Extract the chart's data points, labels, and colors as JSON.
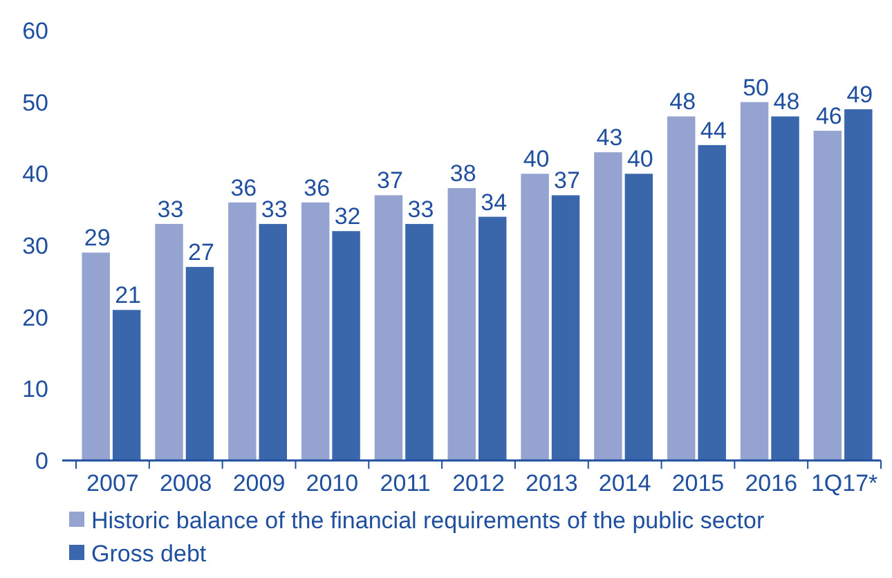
{
  "chart_data": {
    "type": "bar",
    "categories": [
      "2007",
      "2008",
      "2009",
      "2010",
      "2011",
      "2012",
      "2013",
      "2014",
      "2015",
      "2016",
      "1Q17*"
    ],
    "series": [
      {
        "name": "Historic balance of the financial requirements of the public sector",
        "color": "#95a3d0",
        "values": [
          29,
          33,
          36,
          36,
          37,
          38,
          40,
          43,
          48,
          50,
          46
        ]
      },
      {
        "name": "Gross debt",
        "color": "#3a66ab",
        "values": [
          21,
          27,
          33,
          32,
          33,
          34,
          37,
          40,
          44,
          48,
          49
        ]
      }
    ],
    "ylim": [
      0,
      60
    ],
    "yticks": [
      0,
      10,
      20,
      30,
      40,
      50,
      60
    ],
    "data_labels": true,
    "legend": "bottom",
    "grid": false
  }
}
